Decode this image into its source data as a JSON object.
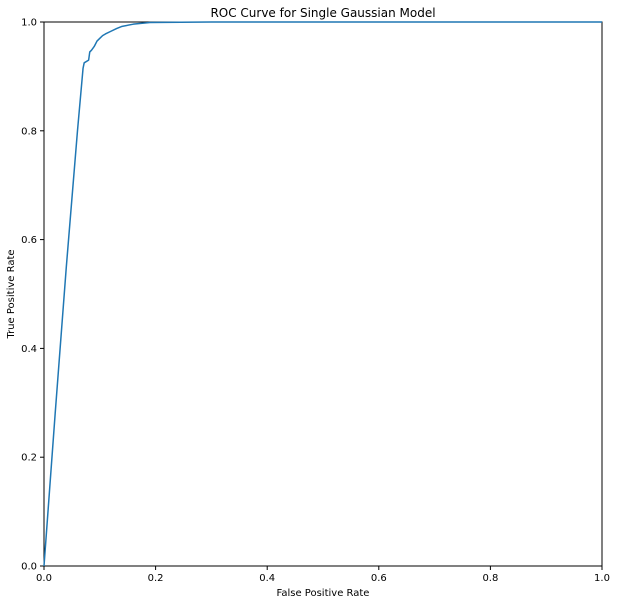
{
  "chart_data": {
    "type": "line",
    "title": "ROC Curve for Single Gaussian Model",
    "xlabel": "False Positive Rate",
    "ylabel": "True Positive Rate",
    "xlim": [
      0,
      1
    ],
    "ylim": [
      0,
      1
    ],
    "xticks": [
      "0.0",
      "0.2",
      "0.4",
      "0.6",
      "0.8",
      "1.0"
    ],
    "yticks": [
      "0.0",
      "0.2",
      "0.4",
      "0.6",
      "0.8",
      "1.0"
    ],
    "grid": false,
    "legend": "none",
    "series": [
      {
        "color": "#1f77b4",
        "points": [
          [
            0.0,
            0.0
          ],
          [
            0.02,
            0.28
          ],
          [
            0.04,
            0.55
          ],
          [
            0.06,
            0.8
          ],
          [
            0.07,
            0.915
          ],
          [
            0.072,
            0.925
          ],
          [
            0.08,
            0.93
          ],
          [
            0.082,
            0.945
          ],
          [
            0.085,
            0.948
          ],
          [
            0.09,
            0.955
          ],
          [
            0.095,
            0.965
          ],
          [
            0.1,
            0.97
          ],
          [
            0.105,
            0.975
          ],
          [
            0.11,
            0.978
          ],
          [
            0.12,
            0.983
          ],
          [
            0.13,
            0.988
          ],
          [
            0.14,
            0.992
          ],
          [
            0.16,
            0.996
          ],
          [
            0.19,
            0.999
          ],
          [
            0.3,
            1.0
          ],
          [
            1.0,
            1.0
          ]
        ]
      }
    ]
  }
}
